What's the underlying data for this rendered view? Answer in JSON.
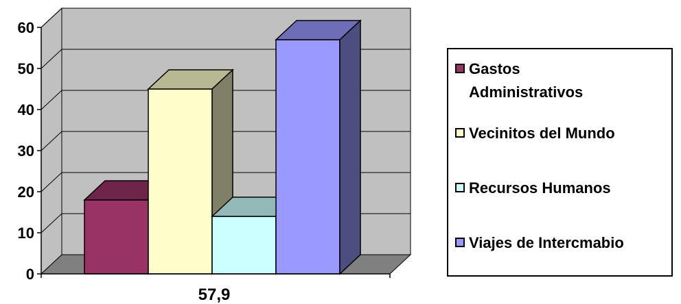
{
  "chart_data": {
    "type": "bar",
    "categories": [
      "57,9"
    ],
    "series": [
      {
        "name": "Gastos\nAdministrativos",
        "values": [
          18
        ],
        "color": "#993366"
      },
      {
        "name": "Vecinitos del Mundo",
        "values": [
          45
        ],
        "color": "#FFFFCC"
      },
      {
        "name": "Recursos Humanos",
        "values": [
          14
        ],
        "color": "#CCFFFF"
      },
      {
        "name": "Viajes de Intercmabio",
        "values": [
          57
        ],
        "color": "#9999FF"
      }
    ],
    "ylim": [
      0,
      60
    ],
    "yticks": [
      "0",
      "10",
      "20",
      "30",
      "40",
      "50",
      "60"
    ],
    "grid": true,
    "three_d": true,
    "wall_color": "#C0C0C0",
    "floor_color": "#808080",
    "legend_position": "right"
  }
}
